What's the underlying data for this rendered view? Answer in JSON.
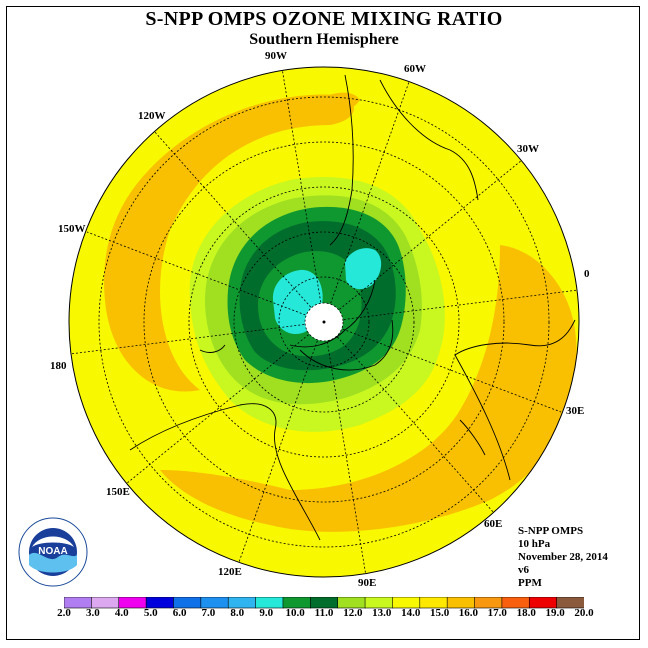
{
  "title": "S-NPP OMPS OZONE MIXING RATIO",
  "subtitle": "Southern Hemisphere",
  "longitude_labels": [
    "90W",
    "60W",
    "30W",
    "0",
    "30E",
    "60E",
    "90E",
    "120E",
    "150E",
    "180",
    "150W",
    "120W"
  ],
  "info": {
    "product": "S-NPP OMPS",
    "level": "10 hPa",
    "date": "November 28, 2014",
    "version": "v6",
    "units": "PPM"
  },
  "logo": {
    "text": "NOAA",
    "icon": "noaa-logo-icon"
  },
  "colorbar": {
    "labels": [
      "2.0",
      "3.0",
      "4.0",
      "5.0",
      "6.0",
      "7.0",
      "8.0",
      "9.0",
      "10.0",
      "11.0",
      "12.0",
      "13.0",
      "14.0",
      "15.0",
      "16.0",
      "17.0",
      "18.0",
      "19.0",
      "20.0"
    ],
    "colors": [
      "#b07ef0",
      "#dca8f0",
      "#ee00ee",
      "#0000dd",
      "#1070e8",
      "#1e90f0",
      "#30b4f0",
      "#26e8d8",
      "#109830",
      "#006d2c",
      "#a0e020",
      "#c8f820",
      "#f8f800",
      "#ffe800",
      "#f8c000",
      "#f89810",
      "#f86010",
      "#ee0000",
      "#8b5a3c"
    ]
  },
  "zone_colors": {
    "background_yellow": "#f8f800",
    "orange": "#f8c000",
    "light_green": "#c8f820",
    "mid_green": "#a0e020",
    "green": "#109830",
    "dark_green": "#006d2c",
    "cyan": "#26e8d8"
  }
}
